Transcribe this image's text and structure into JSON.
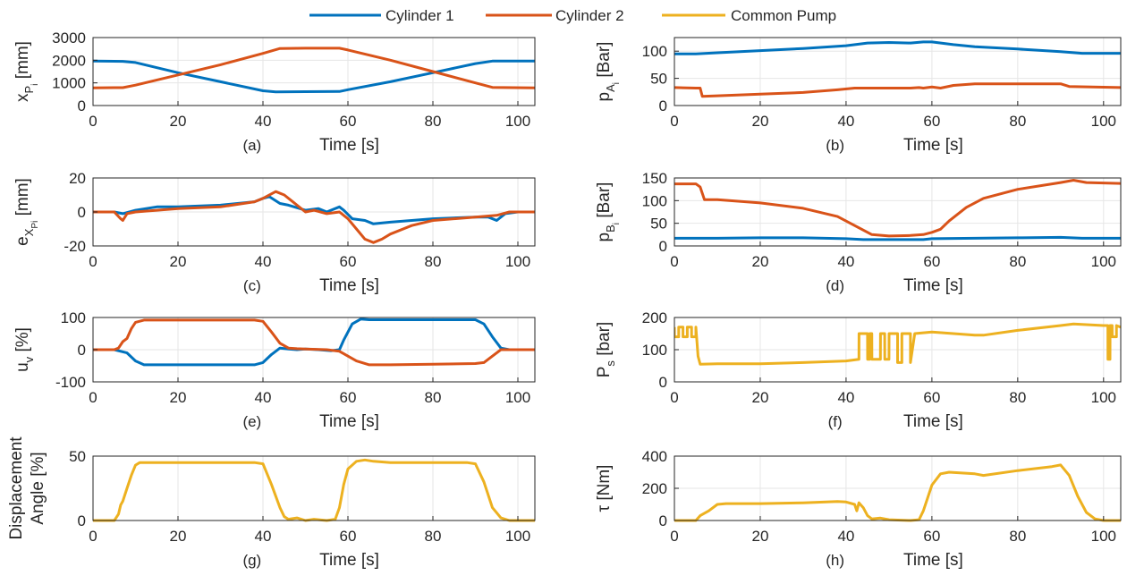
{
  "legend": [
    {
      "label": "Cylinder 1",
      "color": "#0072BD"
    },
    {
      "label": "Cylinder 2",
      "color": "#D95319"
    },
    {
      "label": "Common Pump",
      "color": "#EDB120"
    }
  ],
  "colors": {
    "cylinder_1": "#0072BD",
    "cylinder_2": "#D95319",
    "common_pump": "#EDB120",
    "grid": "#e6e6e6",
    "axes": "#262626"
  },
  "chart_data": [
    {
      "id": "a",
      "type": "line",
      "caption": "(a)",
      "xlabel": "Time [s]",
      "ylabel": "x_Pi [mm]",
      "ylabel_main": "x",
      "ylabel_sub": "P",
      "ylabel_subsub": "i",
      "ylabel_tail": " [mm]",
      "xlim": [
        0,
        104
      ],
      "ylim": [
        0,
        3000
      ],
      "xticks": [
        0,
        20,
        40,
        60,
        80,
        100
      ],
      "yticks": [
        0,
        1000,
        2000,
        3000
      ],
      "grid": true,
      "series": [
        {
          "ref": "cylinder_1",
          "x": [
            0,
            7,
            10,
            20,
            30,
            40,
            43,
            50,
            58,
            60,
            70,
            80,
            90,
            94,
            104
          ],
          "y": [
            1960,
            1950,
            1900,
            1450,
            1050,
            650,
            600,
            610,
            620,
            700,
            1050,
            1450,
            1850,
            1960,
            1960
          ]
        },
        {
          "ref": "cylinder_2",
          "x": [
            0,
            7,
            10,
            20,
            30,
            40,
            44,
            50,
            58,
            60,
            70,
            80,
            90,
            94,
            104
          ],
          "y": [
            780,
            790,
            900,
            1350,
            1800,
            2300,
            2520,
            2530,
            2530,
            2450,
            2000,
            1500,
            1000,
            800,
            780
          ]
        }
      ]
    },
    {
      "id": "b",
      "type": "line",
      "caption": "(b)",
      "xlabel": "Time [s]",
      "ylabel": "p_Ai [Bar]",
      "ylabel_main": "p",
      "ylabel_sub": "A",
      "ylabel_subsub": "i",
      "ylabel_tail": " [Bar]",
      "xlim": [
        0,
        104
      ],
      "ylim": [
        0,
        125
      ],
      "xticks": [
        0,
        20,
        40,
        60,
        80,
        100
      ],
      "yticks": [
        0,
        50,
        100
      ],
      "grid": true,
      "series": [
        {
          "ref": "cylinder_1",
          "x": [
            0,
            5,
            10,
            20,
            30,
            40,
            45,
            50,
            55,
            58,
            60,
            65,
            70,
            80,
            90,
            95,
            104
          ],
          "y": [
            95,
            95,
            97,
            101,
            105,
            110,
            115,
            116,
            115,
            117,
            117,
            112,
            108,
            104,
            99,
            96,
            96
          ]
        },
        {
          "ref": "cylinder_2",
          "x": [
            0,
            5,
            6,
            6.5,
            10,
            20,
            30,
            38,
            42,
            50,
            55,
            57,
            58,
            60,
            62,
            65,
            70,
            80,
            90,
            92,
            104
          ],
          "y": [
            33,
            32,
            32,
            17,
            18,
            21,
            24,
            29,
            32,
            32,
            32,
            33,
            32,
            34,
            32,
            37,
            40,
            40,
            40,
            35,
            33
          ]
        }
      ]
    },
    {
      "id": "c",
      "type": "line",
      "caption": "(c)",
      "xlabel": "Time [s]",
      "ylabel": "e_XPi [mm]",
      "ylabel_main": "e",
      "ylabel_sub": "X",
      "ylabel_subsub": "Pi",
      "ylabel_tail": "  [mm]",
      "xlim": [
        0,
        104
      ],
      "ylim": [
        -20,
        20
      ],
      "xticks": [
        0,
        20,
        40,
        60,
        80,
        100
      ],
      "yticks": [
        -20,
        0,
        20
      ],
      "grid": true,
      "series": [
        {
          "ref": "cylinder_1",
          "x": [
            0,
            5,
            7,
            10,
            15,
            20,
            30,
            38,
            40,
            41.5,
            44,
            46,
            50,
            53,
            55,
            58,
            59,
            61,
            64,
            66,
            70,
            80,
            90,
            93,
            95,
            97,
            100,
            104
          ],
          "y": [
            0,
            0,
            -1,
            1,
            3,
            3,
            4,
            6,
            8,
            9,
            5,
            4,
            1,
            2,
            0,
            3,
            1,
            -4,
            -5,
            -7,
            -6,
            -4,
            -3,
            -3,
            -5,
            -1,
            0,
            0
          ]
        },
        {
          "ref": "cylinder_2",
          "x": [
            0,
            5,
            6.5,
            7,
            8,
            10,
            20,
            30,
            38,
            40,
            43,
            45,
            47,
            50,
            52,
            55,
            58,
            60,
            62,
            64,
            66,
            68,
            70,
            75,
            80,
            90,
            95,
            98,
            104
          ],
          "y": [
            0,
            0,
            -4,
            -5,
            -1,
            0,
            2,
            3,
            6,
            8,
            12,
            10,
            6,
            0,
            1,
            -1,
            0,
            -4,
            -10,
            -16,
            -18,
            -16,
            -13,
            -8,
            -5,
            -3,
            -2,
            0,
            0
          ]
        }
      ]
    },
    {
      "id": "d",
      "type": "line",
      "caption": "(d)",
      "xlabel": "Time [s]",
      "ylabel": "p_Bi [Bar]",
      "ylabel_main": "p",
      "ylabel_sub": "B",
      "ylabel_subsub": "i",
      "ylabel_tail": " [Bar]",
      "xlim": [
        0,
        104
      ],
      "ylim": [
        0,
        150
      ],
      "xticks": [
        0,
        20,
        40,
        60,
        80,
        100
      ],
      "yticks": [
        0,
        50,
        100,
        150
      ],
      "grid": true,
      "series": [
        {
          "ref": "cylinder_1",
          "x": [
            0,
            10,
            20,
            30,
            40,
            44,
            50,
            58,
            60,
            70,
            80,
            90,
            95,
            104
          ],
          "y": [
            17,
            17,
            18,
            18,
            16,
            14,
            14,
            14,
            16,
            17,
            18,
            19,
            17,
            17
          ]
        },
        {
          "ref": "cylinder_2",
          "x": [
            0,
            5,
            6,
            7,
            10,
            20,
            30,
            38,
            42,
            46,
            50,
            55,
            58,
            60,
            62,
            64,
            68,
            72,
            80,
            90,
            93,
            96,
            104
          ],
          "y": [
            137,
            137,
            130,
            102,
            102,
            95,
            83,
            65,
            45,
            25,
            22,
            23,
            25,
            30,
            37,
            55,
            85,
            105,
            125,
            140,
            145,
            140,
            138
          ]
        }
      ]
    },
    {
      "id": "e",
      "type": "line",
      "caption": "(e)",
      "xlabel": "Time [s]",
      "ylabel": "u_v [%]",
      "ylabel_main": "u",
      "ylabel_sub": "v",
      "ylabel_subsub": "",
      "ylabel_tail": " [%]",
      "xlim": [
        0,
        104
      ],
      "ylim": [
        -100,
        100
      ],
      "xticks": [
        0,
        20,
        40,
        60,
        80,
        100
      ],
      "yticks": [
        -100,
        0,
        100
      ],
      "grid": true,
      "series": [
        {
          "ref": "cylinder_1",
          "x": [
            0,
            5,
            8,
            10,
            12,
            20,
            30,
            38,
            40,
            42,
            44,
            46,
            48,
            50,
            53,
            56,
            58,
            59,
            61,
            63,
            65,
            70,
            80,
            90,
            92,
            94,
            96,
            98,
            104
          ],
          "y": [
            0,
            0,
            -10,
            -35,
            -47,
            -47,
            -47,
            -47,
            -40,
            -15,
            5,
            2,
            0,
            2,
            0,
            -3,
            0,
            30,
            80,
            95,
            93,
            93,
            93,
            93,
            80,
            40,
            5,
            0,
            0
          ]
        },
        {
          "ref": "cylinder_2",
          "x": [
            0,
            5,
            6,
            7,
            8,
            9,
            10,
            12,
            20,
            30,
            38,
            40,
            42,
            44,
            46,
            48,
            50,
            55,
            58,
            60,
            62,
            65,
            70,
            80,
            90,
            92,
            94,
            96,
            104
          ],
          "y": [
            0,
            0,
            5,
            25,
            35,
            65,
            85,
            92,
            92,
            92,
            92,
            88,
            55,
            20,
            5,
            3,
            2,
            0,
            -5,
            -20,
            -35,
            -47,
            -47,
            -45,
            -43,
            -40,
            -20,
            0,
            0
          ]
        }
      ]
    },
    {
      "id": "f",
      "type": "line",
      "caption": "(f)",
      "xlabel": "Time [s]",
      "ylabel": "P_s [bar]",
      "ylabel_main": "P",
      "ylabel_sub": "s",
      "ylabel_subsub": "",
      "ylabel_tail": " [bar]",
      "xlim": [
        0,
        104
      ],
      "ylim": [
        0,
        200
      ],
      "xticks": [
        0,
        20,
        40,
        60,
        80,
        100
      ],
      "yticks": [
        0,
        100,
        200
      ],
      "grid": true,
      "series": [
        {
          "ref": "common_pump",
          "x": [
            0,
            0.01,
            1,
            1.01,
            2,
            2.01,
            3,
            3.01,
            4,
            4.01,
            5,
            5.01,
            5.5,
            6,
            10,
            20,
            30,
            40,
            43,
            43.01,
            45,
            45.01,
            45.5,
            45.51,
            46,
            46.01,
            48,
            48.01,
            49,
            49.01,
            50,
            50.01,
            52,
            52.01,
            53,
            53.01,
            55,
            55.01,
            56,
            60,
            65,
            70,
            72,
            80,
            90,
            93,
            100,
            101,
            101.01,
            101.5,
            101.51,
            102,
            102.01,
            103,
            103.01,
            104
          ],
          "y": [
            170,
            140,
            140,
            170,
            170,
            140,
            140,
            170,
            170,
            140,
            140,
            170,
            80,
            55,
            56,
            56,
            60,
            65,
            70,
            150,
            150,
            70,
            70,
            150,
            150,
            70,
            70,
            150,
            150,
            70,
            70,
            150,
            150,
            60,
            60,
            150,
            150,
            60,
            150,
            155,
            150,
            145,
            145,
            160,
            175,
            180,
            175,
            175,
            70,
            70,
            175,
            175,
            140,
            140,
            175,
            170
          ]
        }
      ]
    },
    {
      "id": "g",
      "type": "line",
      "caption": "(g)",
      "xlabel": "Time [s]",
      "ylabel": "Displacement Angle [%]",
      "ylabel_main": "Displacement",
      "ylabel_line2": "Angle [%]",
      "xlim": [
        0,
        104
      ],
      "ylim": [
        0,
        50
      ],
      "xticks": [
        0,
        20,
        40,
        60,
        80,
        100
      ],
      "yticks": [
        0,
        50
      ],
      "grid": true,
      "series": [
        {
          "ref": "common_pump",
          "x": [
            0,
            5,
            6,
            6.5,
            7,
            8,
            9,
            10,
            11,
            12,
            20,
            30,
            38,
            40,
            42,
            44,
            45,
            46,
            48,
            50,
            52,
            55,
            57,
            58,
            59,
            60,
            62,
            64,
            66,
            70,
            80,
            88,
            90,
            92,
            94,
            96,
            98,
            100,
            104
          ],
          "y": [
            0,
            0,
            5,
            12,
            15,
            25,
            35,
            43,
            45,
            45,
            45,
            45,
            45,
            44,
            28,
            10,
            3,
            1,
            2,
            0,
            1,
            0,
            1,
            10,
            28,
            40,
            46,
            47,
            46,
            45,
            45,
            45,
            44,
            30,
            10,
            2,
            0,
            0,
            0
          ]
        }
      ]
    },
    {
      "id": "h",
      "type": "line",
      "caption": "(h)",
      "xlabel": "Time [s]",
      "ylabel": "τ [Nm]",
      "ylabel_main": "τ",
      "ylabel_sub": "",
      "ylabel_subsub": "",
      "ylabel_tail": "  [Nm]",
      "xlim": [
        0,
        104
      ],
      "ylim": [
        0,
        400
      ],
      "xticks": [
        0,
        20,
        40,
        60,
        80,
        100
      ],
      "yticks": [
        0,
        200,
        400
      ],
      "grid": true,
      "series": [
        {
          "ref": "common_pump",
          "x": [
            0,
            5,
            6,
            8,
            10,
            12,
            20,
            30,
            38,
            40,
            42,
            42.5,
            43,
            44,
            45,
            46,
            48,
            50,
            55,
            57,
            58,
            60,
            62,
            64,
            70,
            72,
            80,
            88,
            90,
            92,
            94,
            96,
            98,
            100,
            104
          ],
          "y": [
            0,
            0,
            30,
            60,
            100,
            105,
            105,
            110,
            118,
            115,
            100,
            60,
            110,
            80,
            30,
            10,
            15,
            5,
            0,
            5,
            60,
            220,
            290,
            300,
            290,
            280,
            310,
            335,
            345,
            280,
            150,
            50,
            10,
            0,
            0
          ]
        }
      ]
    }
  ]
}
